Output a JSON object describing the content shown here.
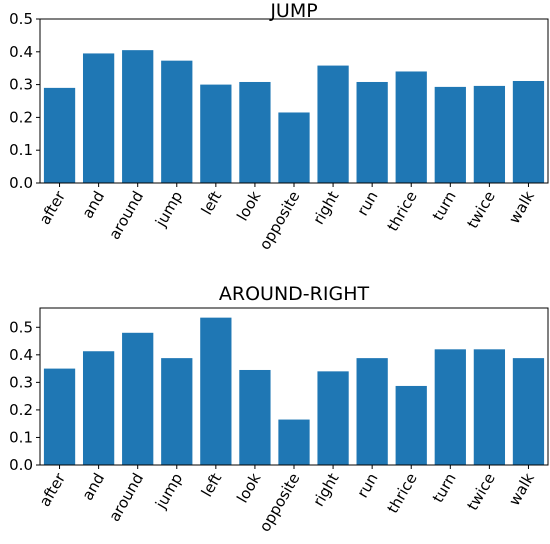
{
  "chart_data": [
    {
      "type": "bar",
      "title": "JUMP",
      "xlabel": "",
      "ylabel": "",
      "categories": [
        "after",
        "and",
        "around",
        "jump",
        "left",
        "look",
        "opposite",
        "right",
        "run",
        "thrice",
        "turn",
        "twice",
        "walk"
      ],
      "values": [
        0.29,
        0.395,
        0.405,
        0.373,
        0.3,
        0.308,
        0.215,
        0.358,
        0.308,
        0.34,
        0.293,
        0.296,
        0.311
      ],
      "ylim": [
        0,
        0.5
      ],
      "yticks": [
        0.0,
        0.1,
        0.2,
        0.3,
        0.4,
        0.5
      ],
      "ytick_labels": [
        "0.0",
        "0.1",
        "0.2",
        "0.3",
        "0.4",
        "0.5"
      ],
      "xtick_rotation": 60,
      "bar_color": "#1f77b4",
      "grid": false
    },
    {
      "type": "bar",
      "title": "AROUND-RIGHT",
      "xlabel": "",
      "ylabel": "",
      "categories": [
        "after",
        "and",
        "around",
        "jump",
        "left",
        "look",
        "opposite",
        "right",
        "run",
        "thrice",
        "turn",
        "twice",
        "walk"
      ],
      "values": [
        0.35,
        0.413,
        0.48,
        0.388,
        0.535,
        0.345,
        0.165,
        0.34,
        0.388,
        0.287,
        0.42,
        0.42,
        0.388
      ],
      "ylim": [
        0,
        0.57
      ],
      "yticks": [
        0.0,
        0.1,
        0.2,
        0.3,
        0.4,
        0.5
      ],
      "ytick_labels": [
        "0.0",
        "0.1",
        "0.2",
        "0.3",
        "0.4",
        "0.5"
      ],
      "xtick_rotation": 60,
      "bar_color": "#1f77b4",
      "grid": false
    }
  ]
}
